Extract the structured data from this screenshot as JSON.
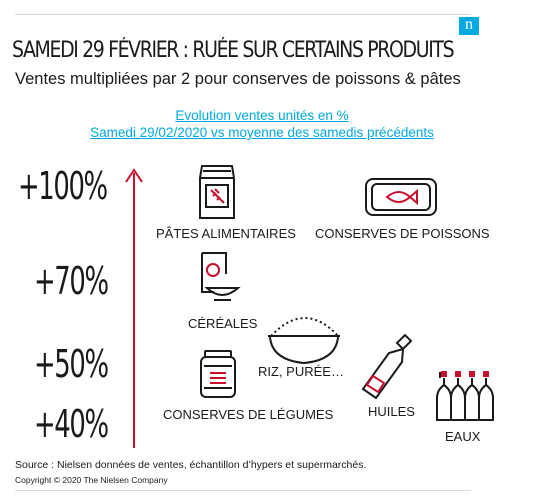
{
  "logo_text": "n",
  "title": "SAMEDI 29 FÉVRIER : RUÉE SUR CERTAINS PRODUITS",
  "subtitle": "Ventes multipliées par 2 pour conserves de poissons & pâtes",
  "chart_heading_line1": "Evolution ventes unités en %",
  "chart_heading_line2": "Samedi 29/02/2020 vs moyenne  des samedis précédents",
  "accent_color": "#00a9e0",
  "arrow_color": "#c8102e",
  "chart_data": {
    "type": "scatter",
    "title": "Evolution ventes unités en %",
    "subtitle": "Samedi 29/02/2020 vs moyenne  des samedis précédents",
    "y_ticks": [
      "+100%",
      "+70%",
      "+50%",
      "+40%"
    ],
    "points": [
      {
        "label": "PÂTES ALIMENTAIRES",
        "value": 100,
        "icon": "pasta-bag-icon"
      },
      {
        "label": "CONSERVES DE POISSONS",
        "value": 100,
        "icon": "fish-can-icon"
      },
      {
        "label": "CÉRÉALES",
        "value": 70,
        "icon": "cereal-box-icon"
      },
      {
        "label": "RIZ, PURÉE…",
        "value": 55,
        "icon": "rice-bowl-icon"
      },
      {
        "label": "CONSERVES DE LÉGUMES",
        "value": 48,
        "icon": "vegetable-jar-icon"
      },
      {
        "label": "HUILES",
        "value": 46,
        "icon": "oil-bottle-icon"
      },
      {
        "label": "EAUX",
        "value": 42,
        "icon": "water-bottles-icon"
      }
    ]
  },
  "source": "Source : Nielsen données de ventes, échantillon d’hypers et supermarchés.",
  "copyright": "Copyright © 2020 The Nielsen Company"
}
